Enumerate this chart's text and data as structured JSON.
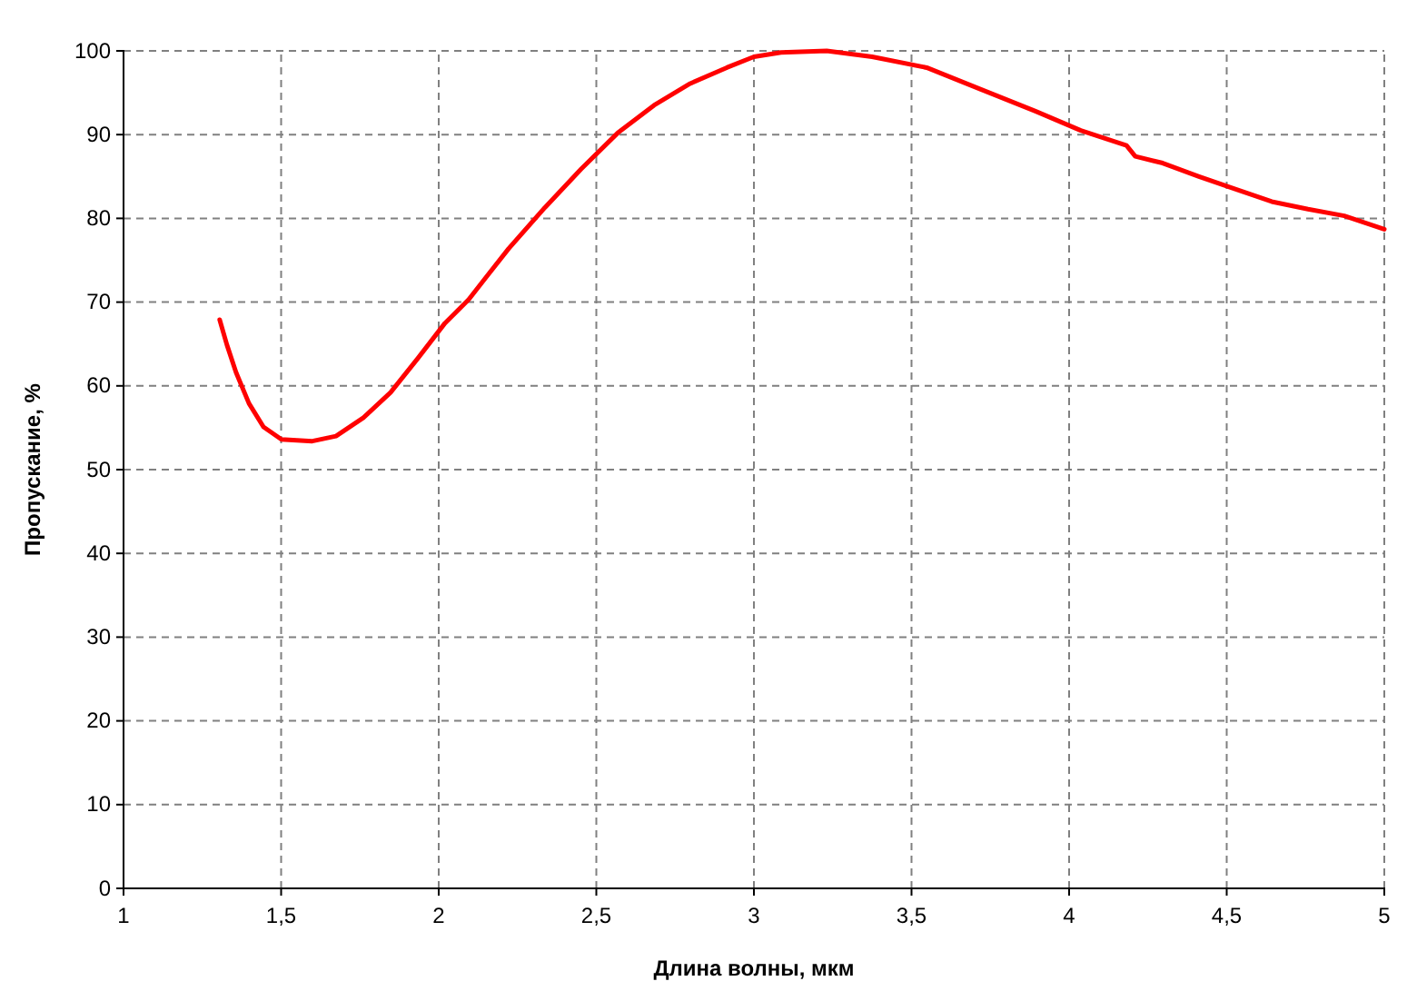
{
  "chart_data": {
    "type": "line",
    "xlabel": "Длина волны, мкм",
    "ylabel": "Пропускание, %",
    "xlim": [
      1,
      5
    ],
    "xticks": [
      1,
      {
        "value": 1.5,
        "label": "1,5"
      },
      2,
      {
        "value": 2.5,
        "label": "2,5"
      },
      3,
      {
        "value": 3.5,
        "label": "3,5"
      },
      4,
      {
        "value": 4.5,
        "label": "4,5"
      },
      5
    ],
    "ylim": [
      0,
      100
    ],
    "yticks": [
      0,
      10,
      20,
      30,
      40,
      50,
      60,
      70,
      80,
      90,
      100
    ],
    "grid": true,
    "line_style": "solid",
    "marker": "none",
    "series": [
      {
        "color": "#ff0000",
        "x": [
          1.305,
          1.328,
          1.357,
          1.398,
          1.444,
          1.501,
          1.599,
          1.674,
          1.761,
          1.847,
          1.934,
          2.02,
          2.095,
          2.153,
          2.222,
          2.337,
          2.452,
          2.568,
          2.683,
          2.798,
          2.914,
          3.0,
          3.086,
          3.231,
          3.375,
          3.548,
          3.72,
          3.893,
          4.037,
          4.182,
          4.21,
          4.297,
          4.412,
          4.527,
          4.643,
          4.758,
          4.873,
          5.0
        ],
        "values": [
          67.9,
          64.9,
          61.6,
          57.9,
          55.1,
          53.6,
          53.4,
          54.0,
          56.2,
          59.2,
          63.3,
          67.5,
          70.3,
          73.1,
          76.4,
          81.3,
          85.9,
          90.2,
          93.5,
          96.1,
          98.0,
          99.3,
          99.8,
          100,
          99.3,
          98.0,
          95.4,
          92.8,
          90.5,
          88.7,
          87.4,
          86.6,
          85.0,
          83.5,
          82.0,
          81.1,
          80.3,
          78.7
        ]
      }
    ]
  }
}
